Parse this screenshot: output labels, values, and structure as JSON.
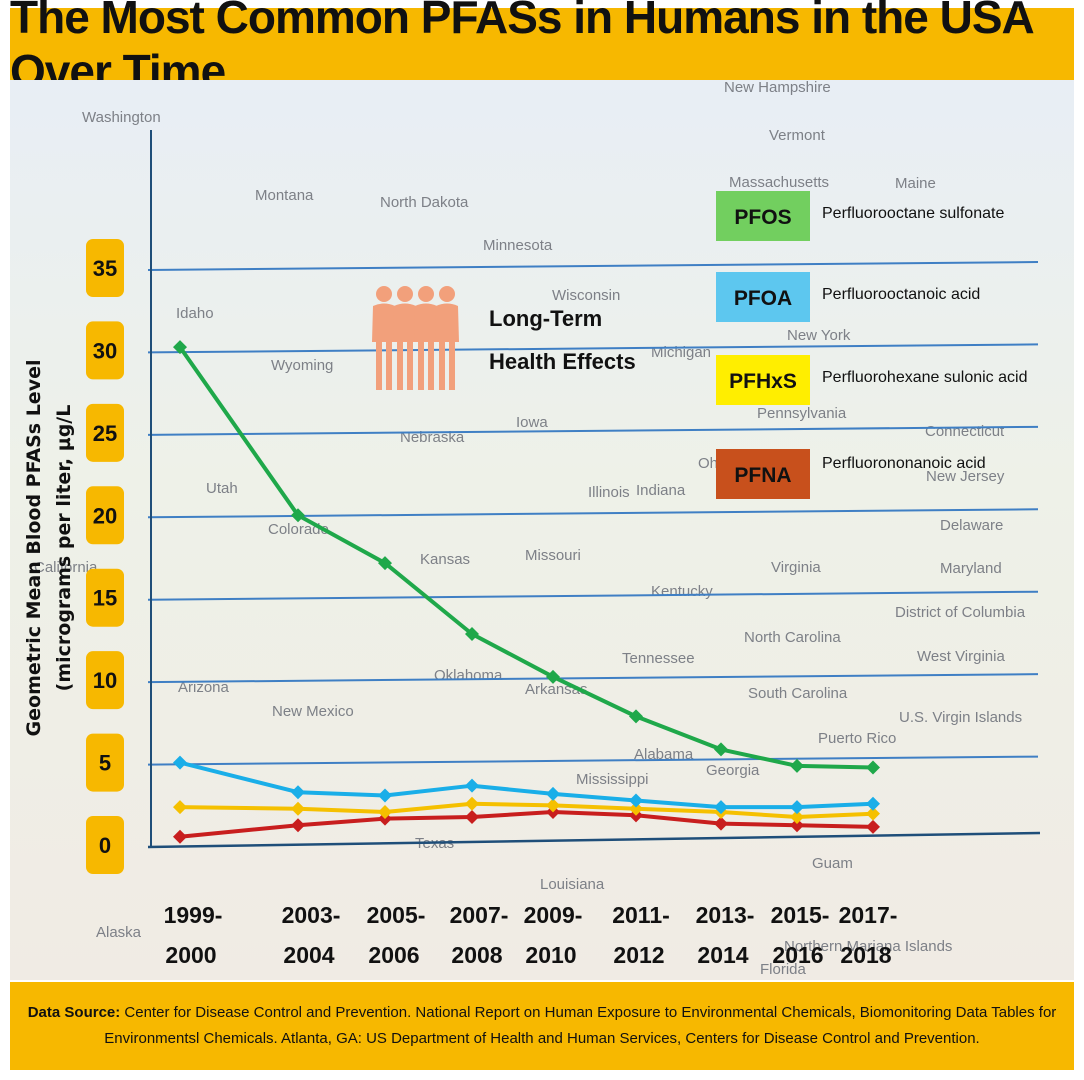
{
  "title": "The Most Common PFASs  in Humans in the USA Over Time",
  "footer": {
    "bold": "Data Source:",
    "text": " Center for Disease Control and Prevention. National Report on Human Exposure to Environmental Chemicals, Biomonitoring Data Tables for Environmentsl Chemicals.  Atlanta, GA: US Department of Health and Human Services, Centers for Disease Control and Prevention."
  },
  "map_labels": [
    "Washington",
    "Montana",
    "North Dakota",
    "Minnesota",
    "Wisconsin",
    "Idaho",
    "Wyoming",
    "Michigan",
    "New York",
    "Vermont",
    "New Hampshire",
    "Massachusetts",
    "Maine",
    "Utah",
    "Nebraska",
    "Iowa",
    "Pennsylvania",
    "Connecticut",
    "Ohio",
    "Illinois",
    "Indiana",
    "New Jersey",
    "Colorado",
    "Kansas",
    "Missouri",
    "Delaware",
    "Virginia",
    "Maryland",
    "Kentucky",
    "District of Columbia",
    "North Carolina",
    "California",
    "Arizona",
    "New Mexico",
    "Oklahoma",
    "Arkansas",
    "Tennessee",
    "West Virginia",
    "South Carolina",
    "U.S. Virgin Islands",
    "Puerto Rico",
    "Alabama",
    "Mississippi",
    "Georgia",
    "Texas",
    "Guam",
    "Louisiana",
    "Alaska",
    "Northern Mariana Islands",
    "Florida"
  ],
  "annotation": {
    "line1": "Long-Term",
    "line2": "Health Effects"
  },
  "colors": {
    "PFOS": "#1fa84a",
    "PFOA": "#1aaee8",
    "PFHxS": "#f5c000",
    "PFNA": "#c81e1e",
    "grid": "#3f7fc4",
    "accent": "#f7b800",
    "people": "#f2a07b"
  },
  "legend": [
    {
      "code": "PFOS",
      "desc": "Perfluorooctane sulfonate",
      "box": "#72cf5f"
    },
    {
      "code": "PFOA",
      "desc": "Perfluorooctanoic acid",
      "box": "#5dc7ef"
    },
    {
      "code": "PFHxS",
      "desc": "Perfluorohexane sulonic acid",
      "box": "#ffee00"
    },
    {
      "code": "PFNA",
      "desc": "Perfluorononanoic acid",
      "box": "#c8501c"
    }
  ],
  "chart_data": {
    "type": "line",
    "title": "The Most Common PFASs  in Humans in the USA Over Time",
    "ylabel": "Geometric Mean Blood PFASs Level",
    "ylabel2": "(micrograms per liter, µg/L",
    "xlabel": "",
    "ylim": [
      0,
      35
    ],
    "yticks": [
      "0",
      "5",
      "10",
      "15",
      "20",
      "25",
      "30",
      "35"
    ],
    "categories": [
      [
        "1999-",
        "2000"
      ],
      [
        "2003-",
        "2004"
      ],
      [
        "2005-",
        "2006"
      ],
      [
        "2007-",
        "2008"
      ],
      [
        "2009-",
        "2010"
      ],
      [
        "2011-",
        "2012"
      ],
      [
        "2013-",
        "2014"
      ],
      [
        "2015-",
        "2016"
      ],
      [
        "2017-",
        "2018"
      ]
    ],
    "series": [
      {
        "name": "PFOS",
        "values": [
          30.2,
          20.0,
          17.1,
          12.8,
          10.2,
          7.8,
          5.8,
          4.8,
          4.7
        ]
      },
      {
        "name": "PFOA",
        "values": [
          5.0,
          3.2,
          3.0,
          3.6,
          3.1,
          2.7,
          2.3,
          2.3,
          2.5
        ]
      },
      {
        "name": "PFHxS",
        "values": [
          2.3,
          2.2,
          2.0,
          2.5,
          2.4,
          2.2,
          2.0,
          1.7,
          1.9
        ]
      },
      {
        "name": "PFNA",
        "values": [
          0.5,
          1.2,
          1.6,
          1.7,
          2.0,
          1.8,
          1.3,
          1.2,
          1.1
        ]
      }
    ]
  }
}
